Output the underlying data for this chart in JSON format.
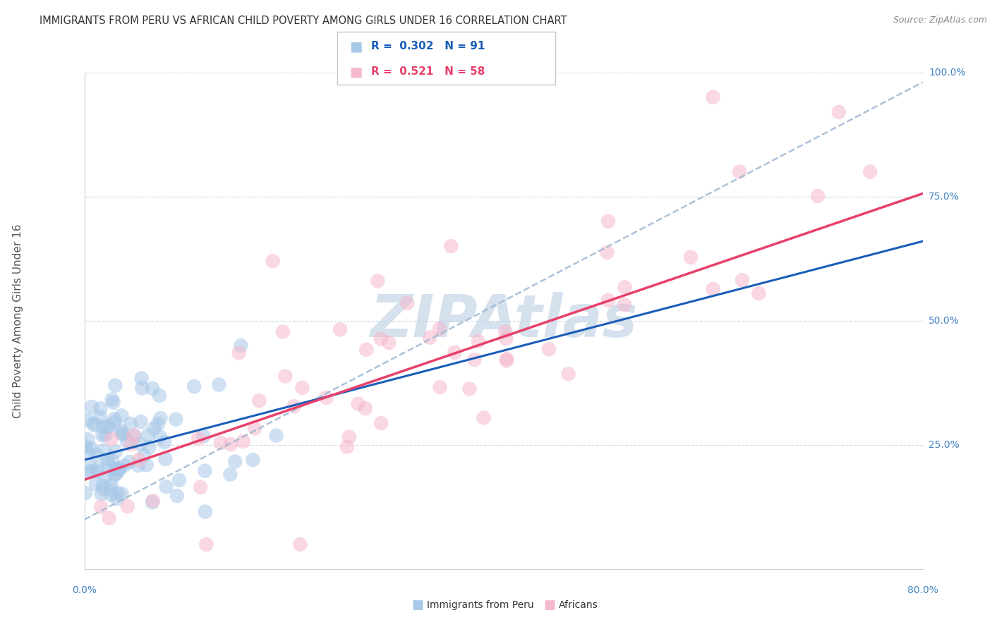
{
  "title": "IMMIGRANTS FROM PERU VS AFRICAN CHILD POVERTY AMONG GIRLS UNDER 16 CORRELATION CHART",
  "source": "Source: ZipAtlas.com",
  "ylabel": "Child Poverty Among Girls Under 16",
  "xlim": [
    0.0,
    80.0
  ],
  "ylim": [
    0.0,
    100.0
  ],
  "ytick_vals": [
    0,
    25,
    50,
    75,
    100
  ],
  "ytick_labels": [
    "",
    "25.0%",
    "50.0%",
    "75.0%",
    "100.0%"
  ],
  "blue_color": "#a8c8e8",
  "pink_color": "#f5b8cc",
  "blue_line_color": "#1a5eb8",
  "pink_line_color": "#e8406a",
  "gray_dash_color": "#a0b8d0",
  "watermark_text": "ZIPAtlas",
  "watermark_color": "#c5d5e8",
  "blue_R": 0.302,
  "blue_N": 91,
  "pink_R": 0.521,
  "pink_N": 58,
  "seed": 7,
  "background_color": "#ffffff",
  "grid_color": "#d0d8e0",
  "legend_blue_text_color": "#1a5eb8",
  "legend_pink_text_color": "#e8406a",
  "axis_label_color": "#4080c0",
  "ylabel_color": "#555555",
  "title_color": "#333333",
  "source_color": "#888888",
  "bottom_legend_color": "#333333",
  "legend_box_edge": "#c0c8d0",
  "blue_line_intercept": 22.0,
  "blue_line_slope": 0.55,
  "pink_line_intercept": 18.0,
  "pink_line_slope": 0.72,
  "gray_line_intercept": 10.0,
  "gray_line_slope": 1.1
}
